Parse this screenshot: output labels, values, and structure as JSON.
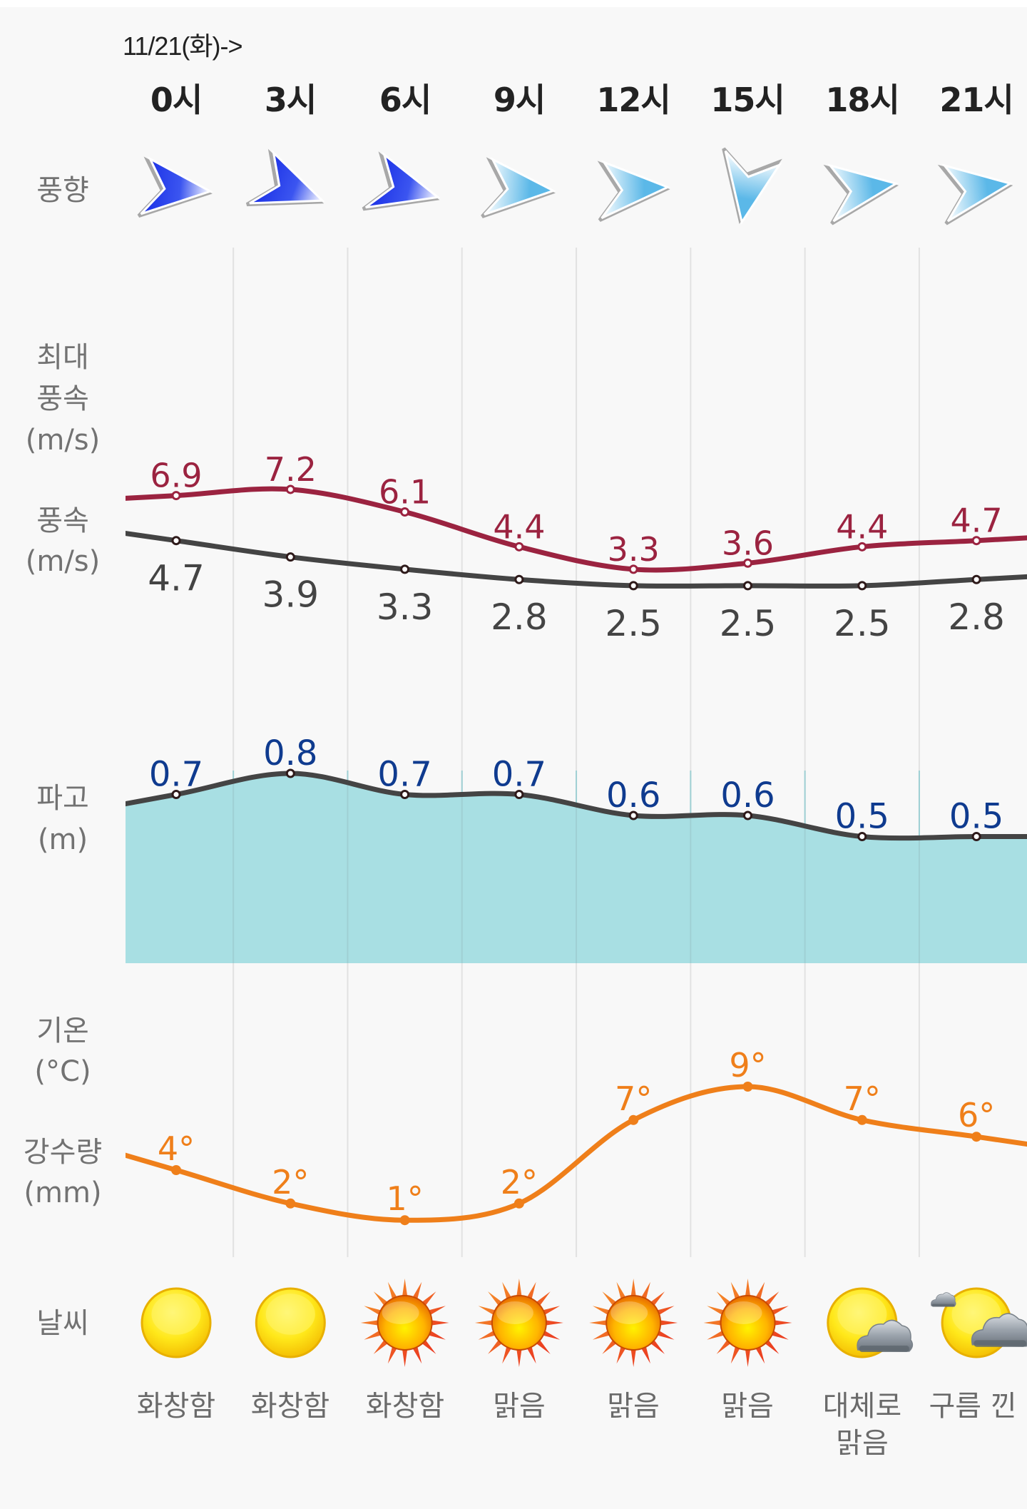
{
  "header": {
    "date_label": "11/21(화)->",
    "hours": [
      "0시",
      "3시",
      "6시",
      "9시",
      "12시",
      "15시",
      "18시",
      "21시"
    ]
  },
  "row_labels": {
    "wind_direction": "풍향",
    "max_wind_line1": "최대",
    "max_wind_line2": "풍속",
    "max_wind_unit": "(m/s)",
    "wind_speed": "풍속",
    "wind_speed_unit": "(m/s)",
    "wave_height": "파고",
    "wave_height_unit": "(m)",
    "temperature": "기온",
    "temperature_unit": "(°C)",
    "precipitation": "강수량",
    "precipitation_unit": "(mm)",
    "weather": "날씨"
  },
  "wind_direction": {
    "arrows": [
      {
        "icon": "wind-arrow-icon",
        "rotation_deg": 5,
        "strength": "strong"
      },
      {
        "icon": "wind-arrow-icon",
        "rotation_deg": 21,
        "strength": "strong"
      },
      {
        "icon": "wind-arrow-icon",
        "rotation_deg": 15,
        "strength": "strong"
      },
      {
        "icon": "wind-arrow-icon",
        "rotation_deg": 4,
        "strength": "light"
      },
      {
        "icon": "wind-arrow-icon",
        "rotation_deg": -2,
        "strength": "light"
      },
      {
        "icon": "wind-arrow-icon",
        "rotation_deg": 100,
        "strength": "light"
      },
      {
        "icon": "wind-arrow-icon",
        "rotation_deg": -8,
        "strength": "light"
      },
      {
        "icon": "wind-arrow-icon",
        "rotation_deg": -8,
        "strength": "light"
      }
    ],
    "strong_color": "#1a2fe6",
    "light_color": "#5bb8e8"
  },
  "weather": [
    {
      "icon": "sun-plain-icon",
      "text": "화창함"
    },
    {
      "icon": "sun-plain-icon",
      "text": "화창함"
    },
    {
      "icon": "sun-rays-icon",
      "text": "화창함"
    },
    {
      "icon": "sun-rays-icon",
      "text": "맑음"
    },
    {
      "icon": "sun-rays-icon",
      "text": "맑음"
    },
    {
      "icon": "sun-rays-icon",
      "text": "맑음"
    },
    {
      "icon": "sun-cloud-icon",
      "text": "대체로 맑음"
    },
    {
      "icon": "sun-clouds-icon",
      "text": "구름 낀"
    }
  ],
  "colors": {
    "max_wind": "#9b2340",
    "wind_speed": "#444444",
    "wave_line": "#444444",
    "wave_fill": "#a8dfe3",
    "wave_label": "#0f3b8f",
    "temperature": "#ef7f1a",
    "grid": "#e2e2e2"
  },
  "chart_data": [
    {
      "type": "line",
      "title": "최대 풍속 / 풍속",
      "ylabel": "(m/s)",
      "categories": [
        "0시",
        "3시",
        "6시",
        "9시",
        "12시",
        "15시",
        "18시",
        "21시"
      ],
      "series": [
        {
          "name": "최대 풍속",
          "values": [
            6.9,
            7.2,
            6.1,
            4.4,
            3.3,
            3.6,
            4.4,
            4.7
          ]
        },
        {
          "name": "풍속",
          "values": [
            4.7,
            3.9,
            3.3,
            2.8,
            2.5,
            2.5,
            2.5,
            2.8
          ]
        }
      ]
    },
    {
      "type": "area",
      "title": "파고",
      "ylabel": "(m)",
      "categories": [
        "0시",
        "3시",
        "6시",
        "9시",
        "12시",
        "15시",
        "18시",
        "21시"
      ],
      "series": [
        {
          "name": "파고",
          "values": [
            0.7,
            0.8,
            0.7,
            0.7,
            0.6,
            0.6,
            0.5,
            0.5
          ]
        }
      ]
    },
    {
      "type": "line",
      "title": "기온",
      "ylabel": "(°C)",
      "value_suffix": "°",
      "categories": [
        "0시",
        "3시",
        "6시",
        "9시",
        "12시",
        "15시",
        "18시",
        "21시"
      ],
      "series": [
        {
          "name": "기온",
          "values": [
            4,
            2,
            1,
            2,
            7,
            9,
            7,
            6
          ]
        }
      ]
    }
  ]
}
